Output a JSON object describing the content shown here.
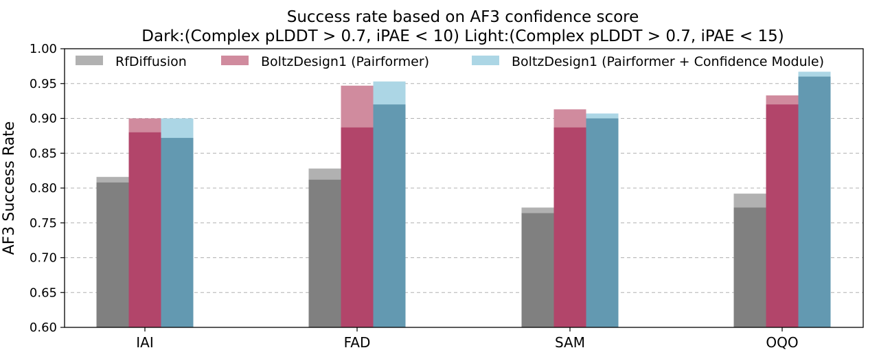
{
  "chart_data": {
    "type": "bar",
    "title": "Success rate based on AF3 confidence score",
    "subtitle": "Dark:(Complex pLDDT > 0.7, iPAE < 10) Light:(Complex pLDDT > 0.7, iPAE < 15)",
    "xlabel": "",
    "ylabel": "AF3 Success Rate",
    "ylim": [
      0.6,
      1.0
    ],
    "yticks": [
      "0.60",
      "0.65",
      "0.70",
      "0.75",
      "0.80",
      "0.85",
      "0.90",
      "0.95",
      "1.00"
    ],
    "ytick_values": [
      0.6,
      0.65,
      0.7,
      0.75,
      0.8,
      0.85,
      0.9,
      0.95,
      1.0
    ],
    "grid": true,
    "legend_position": "top",
    "categories": [
      "IAI",
      "FAD",
      "SAM",
      "OQO"
    ],
    "series": [
      {
        "name": "RfDiffusion",
        "dark_color": "#808080",
        "light_color": "#b1b1b1",
        "dark_values": [
          0.808,
          0.812,
          0.764,
          0.772
        ],
        "light_values": [
          0.816,
          0.828,
          0.772,
          0.792
        ]
      },
      {
        "name": "BoltzDesign1 (Pairformer)",
        "dark_color": "#b2456a",
        "light_color": "#d08b9e",
        "dark_values": [
          0.88,
          0.887,
          0.887,
          0.92
        ],
        "light_values": [
          0.9,
          0.947,
          0.913,
          0.933
        ]
      },
      {
        "name": "BoltzDesign1 (Pairformer + Confidence Module)",
        "dark_color": "#6399b1",
        "light_color": "#acd6e5",
        "dark_values": [
          0.872,
          0.92,
          0.9,
          0.96
        ],
        "light_values": [
          0.9,
          0.953,
          0.907,
          0.967
        ]
      }
    ]
  }
}
